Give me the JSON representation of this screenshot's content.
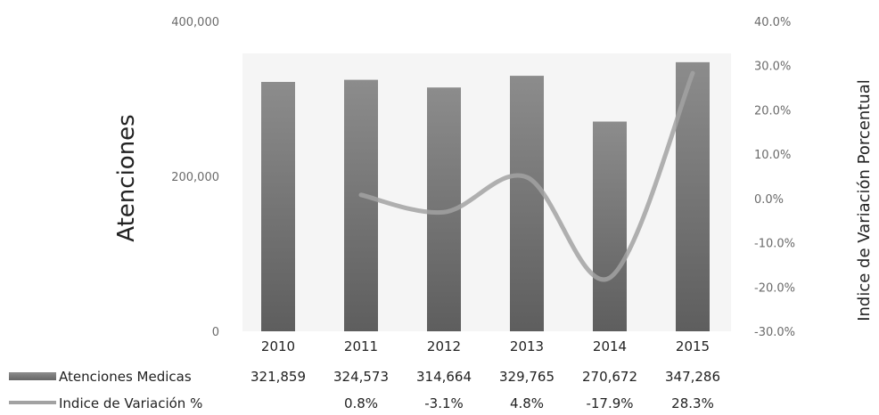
{
  "chart_data": {
    "type": "bar",
    "categories": [
      "2010",
      "2011",
      "2012",
      "2013",
      "2014",
      "2015"
    ],
    "series": [
      {
        "name": "Atenciones Medicas",
        "type": "bar",
        "axis": "left",
        "values": [
          321859,
          324573,
          314664,
          329765,
          270672,
          347286
        ],
        "labels": [
          "321,859",
          "324,573",
          "314,664",
          "329,765",
          "270,672",
          "347,286"
        ]
      },
      {
        "name": "Indice de Variación %",
        "type": "line",
        "axis": "right",
        "values": [
          null,
          0.8,
          -3.1,
          4.8,
          -17.9,
          28.3
        ],
        "labels": [
          "",
          "0.8%",
          "-3.1%",
          "4.8%",
          "-17.9%",
          "28.3%"
        ]
      }
    ],
    "ylabel": "Atenciones",
    "y2label": "Indice de Variación Porcentual",
    "ylim": [
      0,
      400000
    ],
    "y2lim": [
      -30,
      40
    ],
    "yticks": [
      "0",
      "200,000",
      "400,000"
    ],
    "y2ticks": [
      "-30.0%",
      "-20.0%",
      "-10.0%",
      "0.0%",
      "10.0%",
      "20.0%",
      "30.0%",
      "40.0%"
    ],
    "grid": false,
    "legend": "data-table-below",
    "colors": {
      "bar": "#7a7a7a",
      "line": "#a2a2a2",
      "plot_bg": "#f5f5f5"
    }
  }
}
